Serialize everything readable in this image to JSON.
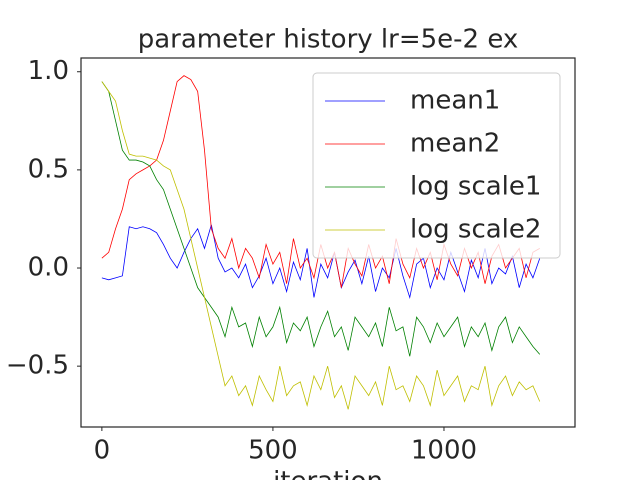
{
  "chart_data": {
    "type": "line",
    "title": "parameter history lr=5e-2 ex",
    "xlabel": "iteration",
    "x": [
      0,
      20,
      40,
      60,
      80,
      100,
      120,
      140,
      160,
      180,
      200,
      220,
      240,
      260,
      280,
      300,
      320,
      340,
      360,
      380,
      400,
      420,
      440,
      460,
      480,
      500,
      520,
      540,
      560,
      580,
      600,
      620,
      640,
      660,
      680,
      700,
      720,
      740,
      760,
      780,
      800,
      820,
      840,
      860,
      880,
      900,
      920,
      940,
      960,
      980,
      1000,
      1020,
      1040,
      1060,
      1080,
      1100,
      1120,
      1140,
      1160,
      1180,
      1200,
      1220,
      1240,
      1260,
      1280
    ],
    "series": [
      {
        "name": "mean1",
        "color": "#0000ff",
        "values": [
          -0.05,
          -0.06,
          -0.05,
          -0.04,
          0.21,
          0.2,
          0.21,
          0.2,
          0.18,
          0.12,
          0.05,
          0.0,
          0.08,
          0.15,
          0.2,
          0.1,
          0.22,
          0.05,
          -0.02,
          0.0,
          -0.05,
          0.02,
          -0.1,
          -0.04,
          0.05,
          -0.08,
          0.0,
          -0.12,
          0.03,
          -0.06,
          0.1,
          -0.15,
          0.02,
          -0.05,
          0.08,
          -0.1,
          -0.02,
          0.04,
          -0.08,
          0.06,
          -0.12,
          0.0,
          -0.05,
          0.1,
          -0.04,
          -0.15,
          0.02,
          0.05,
          -0.1,
          0.0,
          -0.06,
          0.08,
          -0.02,
          -0.12,
          0.04,
          -0.05,
          0.1,
          -0.08,
          0.0,
          -0.03,
          0.06,
          -0.1,
          0.02,
          -0.05,
          0.05
        ]
      },
      {
        "name": "mean2",
        "color": "#ff0000",
        "values": [
          0.05,
          0.08,
          0.2,
          0.3,
          0.45,
          0.48,
          0.5,
          0.52,
          0.55,
          0.65,
          0.8,
          0.95,
          0.98,
          0.96,
          0.9,
          0.6,
          0.2,
          0.1,
          0.05,
          0.15,
          0.0,
          0.1,
          0.05,
          -0.05,
          0.12,
          0.02,
          0.08,
          -0.08,
          0.15,
          0.0,
          0.05,
          -0.05,
          0.12,
          0.0,
          0.08,
          -0.1,
          0.1,
          0.02,
          -0.04,
          0.12,
          0.0,
          0.06,
          -0.08,
          0.15,
          0.02,
          -0.05,
          0.1,
          0.0,
          0.08,
          -0.06,
          0.12,
          0.02,
          -0.04,
          0.1,
          0.0,
          0.08,
          -0.08,
          0.06,
          0.12,
          0.0,
          0.05,
          0.1,
          -0.05,
          0.08,
          0.1
        ]
      },
      {
        "name": "log scale1",
        "color": "#008000",
        "values": [
          0.95,
          0.9,
          0.75,
          0.6,
          0.55,
          0.55,
          0.54,
          0.52,
          0.45,
          0.4,
          0.3,
          0.2,
          0.1,
          0.0,
          -0.1,
          -0.15,
          -0.2,
          -0.25,
          -0.35,
          -0.2,
          -0.3,
          -0.28,
          -0.4,
          -0.25,
          -0.35,
          -0.3,
          -0.2,
          -0.38,
          -0.28,
          -0.32,
          -0.25,
          -0.4,
          -0.3,
          -0.22,
          -0.35,
          -0.3,
          -0.42,
          -0.25,
          -0.3,
          -0.35,
          -0.28,
          -0.4,
          -0.2,
          -0.32,
          -0.3,
          -0.45,
          -0.25,
          -0.3,
          -0.38,
          -0.28,
          -0.35,
          -0.3,
          -0.25,
          -0.4,
          -0.3,
          -0.35,
          -0.28,
          -0.42,
          -0.3,
          -0.25,
          -0.38,
          -0.3,
          -0.35,
          -0.4,
          -0.44
        ]
      },
      {
        "name": "log scale2",
        "color": "#bfbf00",
        "values": [
          0.95,
          0.9,
          0.85,
          0.7,
          0.58,
          0.57,
          0.57,
          0.56,
          0.55,
          0.52,
          0.5,
          0.4,
          0.3,
          0.15,
          0.0,
          -0.15,
          -0.3,
          -0.45,
          -0.6,
          -0.55,
          -0.65,
          -0.6,
          -0.7,
          -0.55,
          -0.62,
          -0.68,
          -0.5,
          -0.65,
          -0.6,
          -0.58,
          -0.7,
          -0.55,
          -0.62,
          -0.5,
          -0.66,
          -0.6,
          -0.72,
          -0.55,
          -0.6,
          -0.65,
          -0.58,
          -0.7,
          -0.5,
          -0.62,
          -0.6,
          -0.68,
          -0.55,
          -0.6,
          -0.7,
          -0.52,
          -0.65,
          -0.6,
          -0.55,
          -0.68,
          -0.6,
          -0.62,
          -0.5,
          -0.7,
          -0.6,
          -0.55,
          -0.65,
          -0.58,
          -0.62,
          -0.6,
          -0.68
        ]
      }
    ],
    "xlim": [
      -61,
      1383
    ],
    "ylim": [
      -0.81,
      1.07
    ],
    "xticks": [
      0,
      500,
      1000
    ],
    "yticks": [
      {
        "value": -0.5,
        "label": "−0.5"
      },
      {
        "value": 0.0,
        "label": "0.0"
      },
      {
        "value": 0.5,
        "label": "0.5"
      },
      {
        "value": 1.0,
        "label": "1.0"
      }
    ],
    "legend": "upper right"
  }
}
